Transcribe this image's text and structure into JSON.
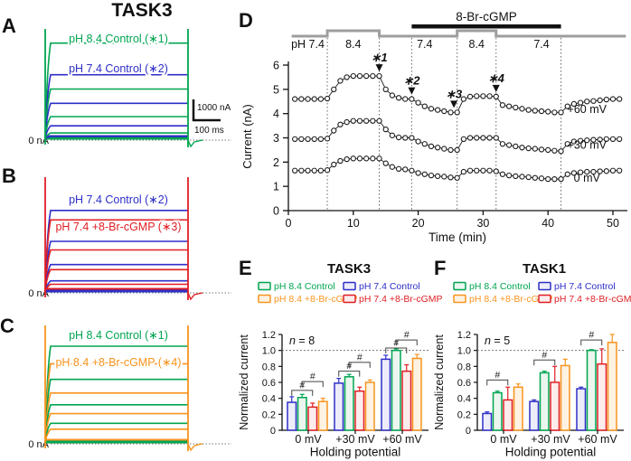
{
  "figure_title": "TASK3",
  "colors": {
    "green": "#00A551",
    "blue": "#2E2EC8",
    "red": "#E01E24",
    "orange": "#F7941D",
    "trace_line": "#1a1a1a",
    "gray_bar": "#9e9e9e",
    "fills": {
      "green": "#eaf6ee",
      "blue": "#ececfa",
      "red": "#fdecec",
      "orange": "#fef2e2"
    }
  },
  "trace_panels": [
    {
      "label": "A",
      "zero_label": "0 nA",
      "spike_color": "green",
      "annotations": [
        {
          "text": "pH 8.4 Control (∗1)",
          "color": "green"
        },
        {
          "text": "pH 7.4 Control (∗2)",
          "color": "blue"
        }
      ],
      "traces": [
        {
          "color": "green",
          "level": 0.95
        },
        {
          "color": "blue",
          "level": 0.64
        },
        {
          "color": "green",
          "level": 0.5
        },
        {
          "color": "blue",
          "level": 0.36
        },
        {
          "color": "green",
          "level": 0.23
        },
        {
          "color": "blue",
          "level": 0.14
        },
        {
          "color": "green",
          "level": 0.07
        },
        {
          "color": "blue",
          "level": 0.035
        }
      ],
      "scalebar": {
        "v_label": "1000 nA",
        "h_label": "100 ms"
      }
    },
    {
      "label": "B",
      "zero_label": "0 nA",
      "spike_color": "red",
      "annotations": [
        {
          "text": "pH 7.4 Control (∗2)",
          "color": "blue"
        },
        {
          "text": "pH 7.4 +8-Br-cGMP (∗3)",
          "color": "red"
        }
      ],
      "traces": [
        {
          "color": "blue",
          "level": 0.96
        },
        {
          "color": "red",
          "level": 0.85
        },
        {
          "color": "blue",
          "level": 0.6
        },
        {
          "color": "red",
          "level": 0.5
        },
        {
          "color": "blue",
          "level": 0.33
        },
        {
          "color": "red",
          "level": 0.27
        },
        {
          "color": "blue",
          "level": 0.14
        },
        {
          "color": "red",
          "level": 0.1
        }
      ]
    },
    {
      "label": "C",
      "zero_label": "0 nA",
      "spike_color": "orange",
      "annotations": [
        {
          "text": "pH 8.4 Control (∗1)",
          "color": "green"
        },
        {
          "text": "pH 8.4 +8-Br-cGMP (∗4)",
          "color": "orange"
        }
      ],
      "traces": [
        {
          "color": "green",
          "level": 1.0
        },
        {
          "color": "orange",
          "level": 0.82
        },
        {
          "color": "green",
          "level": 0.66
        },
        {
          "color": "orange",
          "level": 0.52
        },
        {
          "color": "green",
          "level": 0.4
        },
        {
          "color": "orange",
          "level": 0.31
        },
        {
          "color": "green",
          "level": 0.21
        },
        {
          "color": "orange",
          "level": 0.15
        }
      ]
    }
  ],
  "chart_data": [
    {
      "id": "D",
      "panel_label": "D",
      "type": "scatter",
      "xlabel": "Time (min)",
      "ylabel": "Current (nA)",
      "xticks": [
        0,
        10,
        20,
        30,
        40,
        50
      ],
      "yticks": [
        0,
        1,
        2,
        3,
        4,
        5,
        6
      ],
      "xlim": [
        0,
        52
      ],
      "ylim": [
        0,
        6.4
      ],
      "cgmp_bar": {
        "label": "8-Br-cGMP",
        "start": 19,
        "end": 42
      },
      "ph_bar": {
        "range": [
          0.5,
          52
        ],
        "high_segments": [
          [
            6,
            14
          ],
          [
            26,
            32
          ]
        ]
      },
      "ph_labels": [
        {
          "text": "pH 7.4",
          "t": 3
        },
        {
          "text": "8.4",
          "t": 10
        },
        {
          "text": "7.4",
          "t": 21
        },
        {
          "text": "8.4",
          "t": 29
        },
        {
          "text": "7.4",
          "t": 39
        }
      ],
      "dotted_lines": [
        6,
        14,
        19,
        26,
        32,
        42
      ],
      "annotations": [
        {
          "text": "∗1",
          "t": 14,
          "y": 5.55
        },
        {
          "text": "∗2",
          "t": 19,
          "y": 4.6
        },
        {
          "text": "∗3",
          "t": 25.5,
          "y": 4.05
        },
        {
          "text": "∗4",
          "t": 32,
          "y": 4.7
        }
      ],
      "x": [
        1,
        2,
        3,
        4,
        5,
        6,
        7,
        8,
        9,
        10,
        11,
        12,
        13,
        14,
        15,
        16,
        17,
        18,
        19,
        20,
        21,
        22,
        23,
        24,
        25,
        26,
        27,
        28,
        29,
        30,
        31,
        32,
        33,
        34,
        35,
        36,
        37,
        38,
        39,
        40,
        41,
        42,
        43,
        44,
        45,
        46,
        47,
        48,
        49,
        50,
        51
      ],
      "series": [
        {
          "name": "+60 mV",
          "label_pos": {
            "t": 46,
            "y": 4.02
          },
          "y": [
            4.6,
            4.6,
            4.6,
            4.6,
            4.6,
            4.62,
            5.0,
            5.35,
            5.5,
            5.55,
            5.55,
            5.55,
            5.55,
            5.55,
            5.0,
            4.75,
            4.65,
            4.6,
            4.6,
            4.45,
            4.3,
            4.2,
            4.15,
            4.1,
            4.05,
            4.05,
            4.6,
            4.7,
            4.72,
            4.72,
            4.72,
            4.7,
            4.35,
            4.3,
            4.25,
            4.2,
            4.15,
            4.12,
            4.1,
            4.08,
            4.05,
            4.05,
            4.3,
            4.4,
            4.45,
            4.5,
            4.52,
            4.55,
            4.58,
            4.6,
            4.6
          ]
        },
        {
          "name": "+30 mV",
          "label_pos": {
            "t": 46,
            "y": 2.55
          },
          "y": [
            2.95,
            2.95,
            2.95,
            2.95,
            2.95,
            2.97,
            3.3,
            3.55,
            3.65,
            3.7,
            3.7,
            3.7,
            3.7,
            3.7,
            3.35,
            3.1,
            3.02,
            3.0,
            3.0,
            2.85,
            2.75,
            2.65,
            2.6,
            2.55,
            2.5,
            2.5,
            2.95,
            3.0,
            3.0,
            3.0,
            3.0,
            3.0,
            2.75,
            2.7,
            2.65,
            2.6,
            2.57,
            2.55,
            2.52,
            2.5,
            2.47,
            2.45,
            2.75,
            2.85,
            2.88,
            2.9,
            2.92,
            2.93,
            2.95,
            2.95,
            2.95
          ]
        },
        {
          "name": "0 mV",
          "label_pos": {
            "t": 46,
            "y": 1.2
          },
          "y": [
            1.65,
            1.65,
            1.65,
            1.65,
            1.65,
            1.67,
            1.9,
            2.05,
            2.12,
            2.15,
            2.15,
            2.15,
            2.15,
            2.15,
            1.95,
            1.8,
            1.72,
            1.7,
            1.65,
            1.55,
            1.5,
            1.45,
            1.42,
            1.4,
            1.37,
            1.35,
            1.6,
            1.65,
            1.65,
            1.65,
            1.65,
            1.62,
            1.5,
            1.45,
            1.42,
            1.4,
            1.38,
            1.35,
            1.33,
            1.3,
            1.3,
            1.3,
            1.5,
            1.55,
            1.58,
            1.6,
            1.6,
            1.62,
            1.63,
            1.65,
            1.65
          ]
        }
      ]
    },
    {
      "id": "E",
      "panel_label": "E",
      "type": "bar",
      "title": "TASK3",
      "n_label": "n = 8",
      "xlabel": "Holding potential",
      "ylabel": "Normalized current",
      "ylim": [
        0,
        1.2
      ],
      "yticks": [
        0,
        0.2,
        0.4,
        0.6,
        0.8,
        1.0,
        1.2
      ],
      "ref_line": 1.0,
      "categories": [
        "0 mV",
        "+30 mV",
        "+60 mV"
      ],
      "legend": [
        {
          "text": "pH 8.4 Control",
          "color": "green"
        },
        {
          "text": "pH 7.4 Control",
          "color": "blue"
        },
        {
          "text": "pH 8.4 +8-Br-cGMP",
          "color": "orange"
        },
        {
          "text": "pH 7.4 +8-Br-cGMP",
          "color": "red"
        }
      ],
      "series": [
        {
          "name": "pH 7.4 Control",
          "color": "blue",
          "values": [
            0.35,
            0.59,
            0.89
          ],
          "errors": [
            0.07,
            0.06,
            0.05
          ]
        },
        {
          "name": "pH 8.4 Control",
          "color": "green",
          "values": [
            0.41,
            0.67,
            1.0
          ],
          "errors": [
            0.04,
            0.03,
            0.02
          ]
        },
        {
          "name": "pH 7.4 +8-Br-cGMP",
          "color": "red",
          "values": [
            0.29,
            0.49,
            0.74
          ],
          "errors": [
            0.05,
            0.05,
            0.08
          ]
        },
        {
          "name": "pH 8.4 +8-Br-cGMP",
          "color": "orange",
          "values": [
            0.36,
            0.6,
            0.9
          ],
          "errors": [
            0.04,
            0.03,
            0.05
          ]
        }
      ],
      "sig_brackets": [
        {
          "group": 0,
          "from": 0,
          "to": 2,
          "label": "#",
          "height": 0.5
        },
        {
          "group": 0,
          "from": 1,
          "to": 3,
          "label": "#",
          "height": 0.61
        },
        {
          "group": 1,
          "from": 0,
          "to": 2,
          "label": "#",
          "height": 0.74
        },
        {
          "group": 1,
          "from": 1,
          "to": 3,
          "label": "#",
          "height": 0.85
        },
        {
          "group": 2,
          "from": 0,
          "to": 2,
          "label": "#",
          "height": 1.03
        },
        {
          "group": 2,
          "from": 1,
          "to": 3,
          "label": "#",
          "height": 1.13
        }
      ]
    },
    {
      "id": "F",
      "panel_label": "F",
      "type": "bar",
      "title": "TASK1",
      "n_label": "n = 5",
      "xlabel": "Holding potential",
      "ylabel": "Normalized current",
      "ylim": [
        0,
        1.2
      ],
      "yticks": [
        0,
        0.2,
        0.4,
        0.6,
        0.8,
        1.0,
        1.2
      ],
      "ref_line": 1.0,
      "categories": [
        "0 mV",
        "+30 mV",
        "+60 mV"
      ],
      "legend": [
        {
          "text": "pH 8.4 Control",
          "color": "green"
        },
        {
          "text": "pH 7.4 Control",
          "color": "blue"
        },
        {
          "text": "pH 8.4 +8-Br-cGMP",
          "color": "orange"
        },
        {
          "text": "pH 7.4 +8-Br-cGMP",
          "color": "red"
        }
      ],
      "series": [
        {
          "name": "pH 7.4 Control",
          "color": "blue",
          "values": [
            0.21,
            0.36,
            0.52
          ],
          "errors": [
            0.02,
            0.02,
            0.02
          ]
        },
        {
          "name": "pH 8.4 Control",
          "color": "green",
          "values": [
            0.47,
            0.72,
            1.0
          ],
          "errors": [
            0.02,
            0.02,
            0.01
          ]
        },
        {
          "name": "pH 7.4 +8-Br-cGMP",
          "color": "red",
          "values": [
            0.38,
            0.6,
            0.83
          ],
          "errors": [
            0.16,
            0.2,
            0.19
          ]
        },
        {
          "name": "pH 8.4 +8-Br-cGMP",
          "color": "orange",
          "values": [
            0.54,
            0.81,
            1.1
          ],
          "errors": [
            0.04,
            0.08,
            0.1
          ]
        }
      ],
      "sig_brackets": [
        {
          "group": 0,
          "from": 0,
          "to": 2,
          "label": "#",
          "height": 0.63
        },
        {
          "group": 1,
          "from": 0,
          "to": 2,
          "label": "#",
          "height": 0.88
        },
        {
          "group": 2,
          "from": 0,
          "to": 2,
          "label": "#",
          "height": 1.13
        }
      ]
    }
  ]
}
